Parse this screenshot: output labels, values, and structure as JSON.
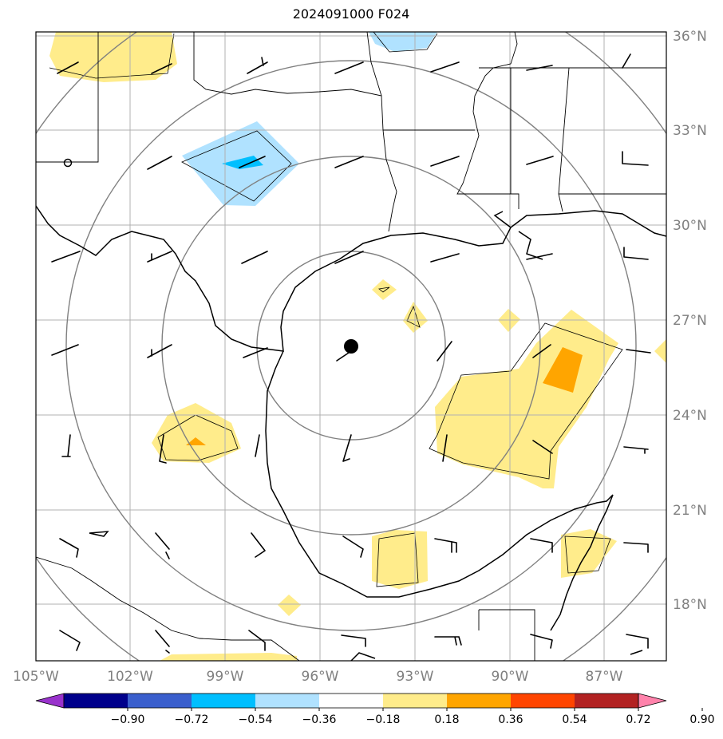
{
  "title": "2024091000 F024",
  "lat_labels": [
    "36°N",
    "33°N",
    "30°N",
    "27°N",
    "24°N",
    "21°N",
    "18°N"
  ],
  "lon_labels": [
    "105°W",
    "102°W",
    "99°W",
    "96°W",
    "93°W",
    "90°W",
    "87°W"
  ],
  "colorbar": {
    "labels": [
      "−0.90",
      "−0.72",
      "−0.54",
      "−0.36",
      "−0.18",
      "0.18",
      "0.36",
      "0.54",
      "0.72",
      "0.90"
    ],
    "colors": [
      "#9932cc",
      "#00008b",
      "#3a5fcd",
      "#00bfff",
      "#b0e2ff",
      "#ffffff",
      "#ffec8b",
      "#ffa500",
      "#ff4500",
      "#b22222",
      "#ff82ab"
    ]
  },
  "colors": {
    "positive_low": "#ffec8b",
    "positive_mid": "#ffa500",
    "negative_low": "#b0e2ff",
    "negative_mid": "#00bfff",
    "grid": "#b0b0b0",
    "range_rings": "#808080"
  },
  "storm_center": {
    "lat": 26.2,
    "lon": -95.0
  },
  "icons": [
    "storm-center-marker",
    "wind-barb"
  ]
}
